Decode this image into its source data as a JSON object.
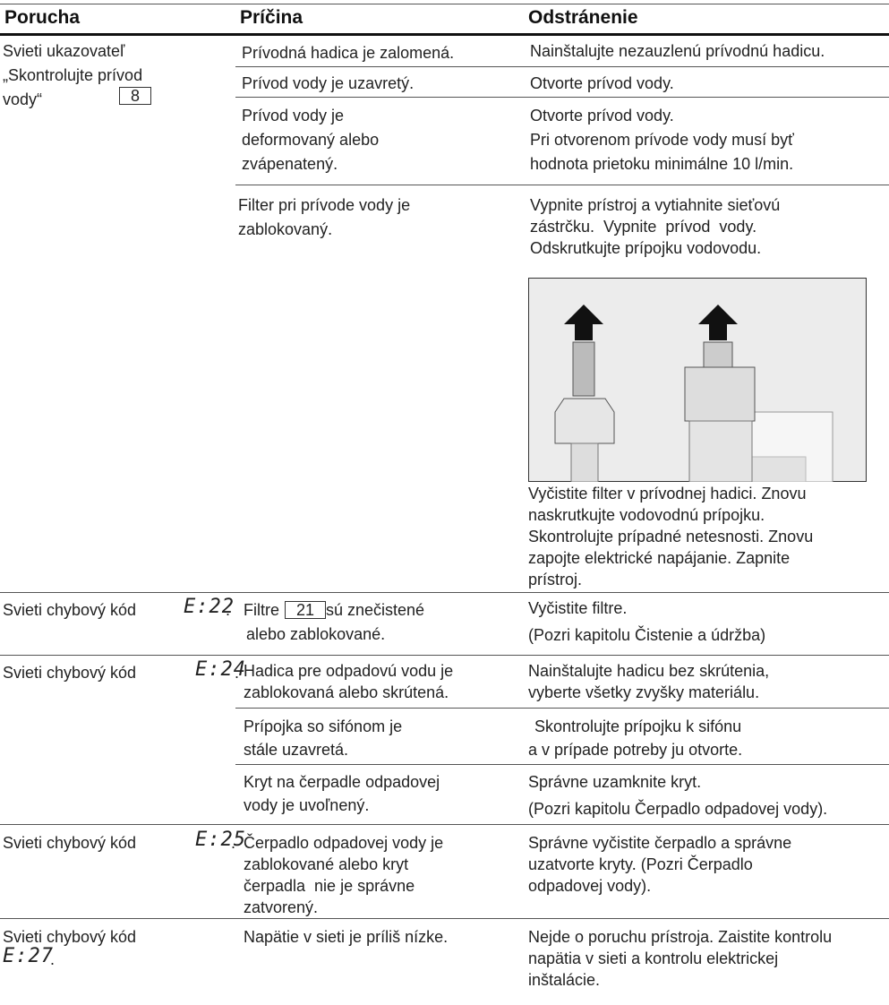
{
  "header": {
    "fault": "Porucha",
    "cause": "Príčina",
    "remedy": "Odstránenie"
  },
  "rows": [
    {
      "fault": [
        "Svieti ukazovateľ",
        "„Skontrolujte prívod",
        "vody“"
      ],
      "indicator": "8",
      "causes": [
        {
          "cause": [
            "Prívodná hadica je zalomená."
          ],
          "remedy": [
            "Nainštalujte nezauzlenú prívodnú hadicu."
          ]
        },
        {
          "cause": [
            "Prívod vody je uzavretý."
          ],
          "remedy": [
            "Otvorte prívod vody."
          ]
        },
        {
          "cause": [
            "Prívod vody je",
            "deformovaný alebo",
            "zvápenatený."
          ],
          "remedy": [
            "Otvorte prívod vody.",
            "Pri otvorenom prívode vody musí byť",
            "hodnota prietoku minimálne 10 l/min."
          ]
        },
        {
          "cause": [
            "Filter pri prívode vody je",
            "zablokovaný."
          ],
          "remedy": [
            "Vypnite prístroj a vytiahnite sieťovú",
            "zástrčku.  Vypnite  prívod  vody.",
            "Odskrutkujte prípojku vodovodu."
          ],
          "remedy_after_image": [
            "Vyčistite filter v prívodnej hadici. Znovu",
            "naskrutkujte vodovodnú prípojku.",
            "Skontrolujte prípadné netesnosti. Znovu",
            "zapojte elektrické napájanie. Zapnite",
            "prístroj."
          ]
        }
      ]
    },
    {
      "fault": [
        "Svieti chybový kód"
      ],
      "code": "E:22",
      "fault_suffix": ".",
      "causes": [
        {
          "cause_prefix": "Filtre",
          "part": "21",
          "cause": [
            "sú znečistené",
            "alebo zablokované."
          ],
          "remedy": [
            "Vyčistite filtre.",
            "(Pozri kapitolu Čistenie a údržba)"
          ]
        }
      ]
    },
    {
      "fault": [
        "Svieti chybový kód"
      ],
      "code": "E:24",
      "fault_suffix": ".",
      "causes": [
        {
          "cause": [
            "Hadica pre odpadovú vodu je",
            "zablokovaná alebo skrútená."
          ],
          "remedy": [
            "Nainštalujte hadicu bez skrútenia,",
            "vyberte všetky zvyšky materiálu."
          ]
        },
        {
          "cause": [
            "Prípojka so sifónom je",
            "stále uzavretá."
          ],
          "remedy": [
            " Skontrolujte prípojku k sifónu",
            "a v prípade potreby ju otvorte."
          ]
        },
        {
          "cause": [
            "Kryt na čerpadle odpadovej",
            "vody je uvoľnený."
          ],
          "remedy": [
            "Správne uzamknite kryt.",
            "(Pozri kapitolu Čerpadlo odpadovej vody)."
          ]
        }
      ]
    },
    {
      "fault": [
        "Svieti chybový kód"
      ],
      "code": "E:25",
      "fault_suffix": ".",
      "causes": [
        {
          "cause": [
            "Čerpadlo odpadovej vody je",
            "zablokované alebo kryt",
            "čerpadla  nie je správne",
            "zatvorený."
          ],
          "remedy": [
            "Správne vyčistite čerpadlo a správne",
            "uzatvorte kryty. (Pozri Čerpadlo",
            "odpadovej vody)."
          ]
        }
      ]
    },
    {
      "fault": [
        "Svieti chybový kód"
      ],
      "code": "E:27",
      "fault_suffix": ".",
      "causes": [
        {
          "cause": [
            "Napätie v sieti je príliš nízke."
          ],
          "remedy": [
            "Nejde o poruchu prístroja. Zaistite kontrolu",
            "napätia v sieti a kontrolu elektrickej",
            "inštalácie."
          ]
        }
      ]
    }
  ]
}
